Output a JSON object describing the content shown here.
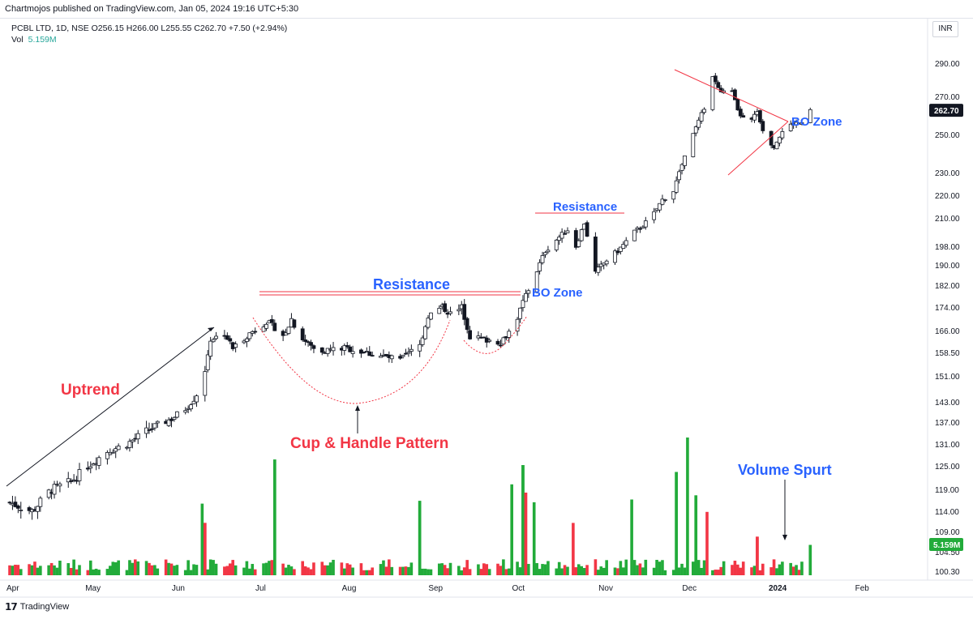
{
  "header": {
    "publisher_line": "Chartmojos published on TradingView.com, Jan 05, 2024 19:16 UTC+5:30",
    "symbol_line": "PCBL LTD, 1D, NSE  O256.15  H266.00  L255.55  C262.70  +7.50 (+2.94%)",
    "volume_label": "Vol",
    "volume_value": "5.159M",
    "currency_button": "INR"
  },
  "footer": {
    "logo_text": "TradingView"
  },
  "colors": {
    "up": "#26a69a",
    "down": "#131722",
    "vol_up": "#22ab3a",
    "vol_down": "#f23645",
    "annot_red": "#f23645",
    "annot_blue": "#2962ff"
  },
  "chart_data": {
    "type": "candlestick",
    "title": "PCBL LTD, 1D, NSE",
    "price_axis": {
      "ticks": [
        100.3,
        104.5,
        109,
        114,
        119,
        125,
        131,
        137,
        143,
        151,
        158.5,
        166,
        174,
        182,
        190,
        198,
        210,
        220,
        230,
        250,
        270,
        290
      ],
      "tick_labels": [
        "100.30",
        "104.50",
        "109.00",
        "114.00",
        "119.00",
        "125.00",
        "131.00",
        "137.00",
        "143.00",
        "151.00",
        "158.50",
        "166.00",
        "174.00",
        "182.00",
        "190.00",
        "198.00",
        "210.00",
        "220.00",
        "230.00",
        "250.00",
        "270.00",
        "290.00"
      ],
      "last_price_label": "262.70",
      "last_volume_label": "5.159M"
    },
    "time_axis": {
      "labels": [
        "Apr",
        "May",
        "Jun",
        "Jul",
        "Aug",
        "Sep",
        "Oct",
        "Nov",
        "Dec",
        "2024",
        "Feb"
      ],
      "bold_labels": [
        "2024"
      ],
      "positions_days": [
        0,
        30,
        61,
        91,
        122,
        153,
        183,
        214,
        244,
        275,
        306
      ]
    },
    "price_path": [
      {
        "d": 0,
        "p": 116
      },
      {
        "d": 8,
        "p": 114
      },
      {
        "d": 15,
        "p": 119
      },
      {
        "d": 22,
        "p": 121
      },
      {
        "d": 28,
        "p": 125
      },
      {
        "d": 35,
        "p": 129
      },
      {
        "d": 42,
        "p": 131
      },
      {
        "d": 50,
        "p": 135
      },
      {
        "d": 58,
        "p": 138
      },
      {
        "d": 63,
        "p": 141
      },
      {
        "d": 66,
        "p": 144
      },
      {
        "d": 69,
        "p": 148
      },
      {
        "d": 72,
        "p": 163
      },
      {
        "d": 77,
        "p": 165
      },
      {
        "d": 80,
        "p": 160
      },
      {
        "d": 86,
        "p": 165
      },
      {
        "d": 92,
        "p": 169
      },
      {
        "d": 95,
        "p": 167
      },
      {
        "d": 98,
        "p": 164
      },
      {
        "d": 101,
        "p": 170
      },
      {
        "d": 104,
        "p": 164
      },
      {
        "d": 110,
        "p": 159
      },
      {
        "d": 120,
        "p": 160
      },
      {
        "d": 130,
        "p": 158
      },
      {
        "d": 140,
        "p": 156
      },
      {
        "d": 147,
        "p": 161
      },
      {
        "d": 150,
        "p": 171
      },
      {
        "d": 155,
        "p": 174
      },
      {
        "d": 159,
        "p": 171
      },
      {
        "d": 162,
        "p": 174
      },
      {
        "d": 165,
        "p": 164
      },
      {
        "d": 170,
        "p": 163
      },
      {
        "d": 176,
        "p": 162
      },
      {
        "d": 181,
        "p": 168
      },
      {
        "d": 185,
        "p": 178
      },
      {
        "d": 188,
        "p": 185
      },
      {
        "d": 192,
        "p": 196
      },
      {
        "d": 197,
        "p": 202
      },
      {
        "d": 200,
        "p": 205
      },
      {
        "d": 203,
        "p": 198
      },
      {
        "d": 206,
        "p": 208
      },
      {
        "d": 210,
        "p": 187
      },
      {
        "d": 214,
        "p": 192
      },
      {
        "d": 218,
        "p": 196
      },
      {
        "d": 224,
        "p": 204
      },
      {
        "d": 230,
        "p": 210
      },
      {
        "d": 234,
        "p": 218
      },
      {
        "d": 238,
        "p": 222
      },
      {
        "d": 241,
        "p": 234
      },
      {
        "d": 245,
        "p": 250
      },
      {
        "d": 249,
        "p": 264
      },
      {
        "d": 252,
        "p": 282
      },
      {
        "d": 255,
        "p": 272
      },
      {
        "d": 258,
        "p": 278
      },
      {
        "d": 261,
        "p": 262
      },
      {
        "d": 265,
        "p": 255
      },
      {
        "d": 268,
        "p": 262
      },
      {
        "d": 271,
        "p": 248
      },
      {
        "d": 274,
        "p": 244
      },
      {
        "d": 278,
        "p": 254
      },
      {
        "d": 282,
        "p": 256
      },
      {
        "d": 285,
        "p": 255
      },
      {
        "d": 287,
        "p": 262.7
      }
    ],
    "volume_spikes": [
      {
        "d": 69,
        "v": 0.52,
        "up": true
      },
      {
        "d": 70,
        "v": 0.38,
        "up": false
      },
      {
        "d": 95,
        "v": 0.84,
        "up": true
      },
      {
        "d": 147,
        "v": 0.54,
        "up": true
      },
      {
        "d": 180,
        "v": 0.66,
        "up": true
      },
      {
        "d": 184,
        "v": 0.8,
        "up": true
      },
      {
        "d": 185,
        "v": 0.6,
        "up": false
      },
      {
        "d": 188,
        "v": 0.53,
        "up": true
      },
      {
        "d": 202,
        "v": 0.38,
        "up": false
      },
      {
        "d": 223,
        "v": 0.55,
        "up": true
      },
      {
        "d": 239,
        "v": 0.75,
        "up": true
      },
      {
        "d": 243,
        "v": 1.0,
        "up": true
      },
      {
        "d": 246,
        "v": 0.58,
        "up": true
      },
      {
        "d": 250,
        "v": 0.46,
        "up": false
      },
      {
        "d": 268,
        "v": 0.28,
        "up": false
      },
      {
        "d": 287,
        "v": 0.22,
        "up": true
      }
    ],
    "annotations": [
      {
        "text": "Uptrend",
        "color": "red"
      },
      {
        "text": "Cup & Handle Pattern",
        "color": "red"
      },
      {
        "text": "Resistance",
        "color": "blue"
      },
      {
        "text": "BO Zone",
        "color": "blue"
      },
      {
        "text": "Resistance",
        "color": "blue"
      },
      {
        "text": "BO Zone",
        "color": "blue"
      },
      {
        "text": "Volume Spurt",
        "color": "blue"
      }
    ],
    "grid": false,
    "xlabel": "",
    "ylabel": ""
  }
}
